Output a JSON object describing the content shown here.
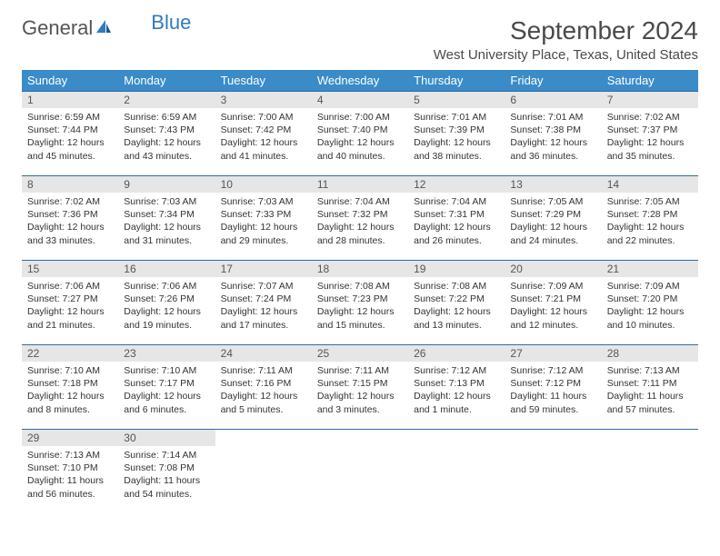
{
  "logo": {
    "text1": "General",
    "text2": "Blue"
  },
  "title": "September 2024",
  "location": "West University Place, Texas, United States",
  "colors": {
    "header_bg": "#3b8bc9",
    "daynum_bg": "#e6e6e6",
    "border_top": "#2e6da4",
    "logo_blue": "#2e7bbf"
  },
  "weekdays": [
    "Sunday",
    "Monday",
    "Tuesday",
    "Wednesday",
    "Thursday",
    "Friday",
    "Saturday"
  ],
  "weeks": [
    [
      {
        "n": "1",
        "sr": "Sunrise: 6:59 AM",
        "ss": "Sunset: 7:44 PM",
        "d1": "Daylight: 12 hours",
        "d2": "and 45 minutes."
      },
      {
        "n": "2",
        "sr": "Sunrise: 6:59 AM",
        "ss": "Sunset: 7:43 PM",
        "d1": "Daylight: 12 hours",
        "d2": "and 43 minutes."
      },
      {
        "n": "3",
        "sr": "Sunrise: 7:00 AM",
        "ss": "Sunset: 7:42 PM",
        "d1": "Daylight: 12 hours",
        "d2": "and 41 minutes."
      },
      {
        "n": "4",
        "sr": "Sunrise: 7:00 AM",
        "ss": "Sunset: 7:40 PM",
        "d1": "Daylight: 12 hours",
        "d2": "and 40 minutes."
      },
      {
        "n": "5",
        "sr": "Sunrise: 7:01 AM",
        "ss": "Sunset: 7:39 PM",
        "d1": "Daylight: 12 hours",
        "d2": "and 38 minutes."
      },
      {
        "n": "6",
        "sr": "Sunrise: 7:01 AM",
        "ss": "Sunset: 7:38 PM",
        "d1": "Daylight: 12 hours",
        "d2": "and 36 minutes."
      },
      {
        "n": "7",
        "sr": "Sunrise: 7:02 AM",
        "ss": "Sunset: 7:37 PM",
        "d1": "Daylight: 12 hours",
        "d2": "and 35 minutes."
      }
    ],
    [
      {
        "n": "8",
        "sr": "Sunrise: 7:02 AM",
        "ss": "Sunset: 7:36 PM",
        "d1": "Daylight: 12 hours",
        "d2": "and 33 minutes."
      },
      {
        "n": "9",
        "sr": "Sunrise: 7:03 AM",
        "ss": "Sunset: 7:34 PM",
        "d1": "Daylight: 12 hours",
        "d2": "and 31 minutes."
      },
      {
        "n": "10",
        "sr": "Sunrise: 7:03 AM",
        "ss": "Sunset: 7:33 PM",
        "d1": "Daylight: 12 hours",
        "d2": "and 29 minutes."
      },
      {
        "n": "11",
        "sr": "Sunrise: 7:04 AM",
        "ss": "Sunset: 7:32 PM",
        "d1": "Daylight: 12 hours",
        "d2": "and 28 minutes."
      },
      {
        "n": "12",
        "sr": "Sunrise: 7:04 AM",
        "ss": "Sunset: 7:31 PM",
        "d1": "Daylight: 12 hours",
        "d2": "and 26 minutes."
      },
      {
        "n": "13",
        "sr": "Sunrise: 7:05 AM",
        "ss": "Sunset: 7:29 PM",
        "d1": "Daylight: 12 hours",
        "d2": "and 24 minutes."
      },
      {
        "n": "14",
        "sr": "Sunrise: 7:05 AM",
        "ss": "Sunset: 7:28 PM",
        "d1": "Daylight: 12 hours",
        "d2": "and 22 minutes."
      }
    ],
    [
      {
        "n": "15",
        "sr": "Sunrise: 7:06 AM",
        "ss": "Sunset: 7:27 PM",
        "d1": "Daylight: 12 hours",
        "d2": "and 21 minutes."
      },
      {
        "n": "16",
        "sr": "Sunrise: 7:06 AM",
        "ss": "Sunset: 7:26 PM",
        "d1": "Daylight: 12 hours",
        "d2": "and 19 minutes."
      },
      {
        "n": "17",
        "sr": "Sunrise: 7:07 AM",
        "ss": "Sunset: 7:24 PM",
        "d1": "Daylight: 12 hours",
        "d2": "and 17 minutes."
      },
      {
        "n": "18",
        "sr": "Sunrise: 7:08 AM",
        "ss": "Sunset: 7:23 PM",
        "d1": "Daylight: 12 hours",
        "d2": "and 15 minutes."
      },
      {
        "n": "19",
        "sr": "Sunrise: 7:08 AM",
        "ss": "Sunset: 7:22 PM",
        "d1": "Daylight: 12 hours",
        "d2": "and 13 minutes."
      },
      {
        "n": "20",
        "sr": "Sunrise: 7:09 AM",
        "ss": "Sunset: 7:21 PM",
        "d1": "Daylight: 12 hours",
        "d2": "and 12 minutes."
      },
      {
        "n": "21",
        "sr": "Sunrise: 7:09 AM",
        "ss": "Sunset: 7:20 PM",
        "d1": "Daylight: 12 hours",
        "d2": "and 10 minutes."
      }
    ],
    [
      {
        "n": "22",
        "sr": "Sunrise: 7:10 AM",
        "ss": "Sunset: 7:18 PM",
        "d1": "Daylight: 12 hours",
        "d2": "and 8 minutes."
      },
      {
        "n": "23",
        "sr": "Sunrise: 7:10 AM",
        "ss": "Sunset: 7:17 PM",
        "d1": "Daylight: 12 hours",
        "d2": "and 6 minutes."
      },
      {
        "n": "24",
        "sr": "Sunrise: 7:11 AM",
        "ss": "Sunset: 7:16 PM",
        "d1": "Daylight: 12 hours",
        "d2": "and 5 minutes."
      },
      {
        "n": "25",
        "sr": "Sunrise: 7:11 AM",
        "ss": "Sunset: 7:15 PM",
        "d1": "Daylight: 12 hours",
        "d2": "and 3 minutes."
      },
      {
        "n": "26",
        "sr": "Sunrise: 7:12 AM",
        "ss": "Sunset: 7:13 PM",
        "d1": "Daylight: 12 hours",
        "d2": "and 1 minute."
      },
      {
        "n": "27",
        "sr": "Sunrise: 7:12 AM",
        "ss": "Sunset: 7:12 PM",
        "d1": "Daylight: 11 hours",
        "d2": "and 59 minutes."
      },
      {
        "n": "28",
        "sr": "Sunrise: 7:13 AM",
        "ss": "Sunset: 7:11 PM",
        "d1": "Daylight: 11 hours",
        "d2": "and 57 minutes."
      }
    ],
    [
      {
        "n": "29",
        "sr": "Sunrise: 7:13 AM",
        "ss": "Sunset: 7:10 PM",
        "d1": "Daylight: 11 hours",
        "d2": "and 56 minutes."
      },
      {
        "n": "30",
        "sr": "Sunrise: 7:14 AM",
        "ss": "Sunset: 7:08 PM",
        "d1": "Daylight: 11 hours",
        "d2": "and 54 minutes."
      },
      null,
      null,
      null,
      null,
      null
    ]
  ]
}
